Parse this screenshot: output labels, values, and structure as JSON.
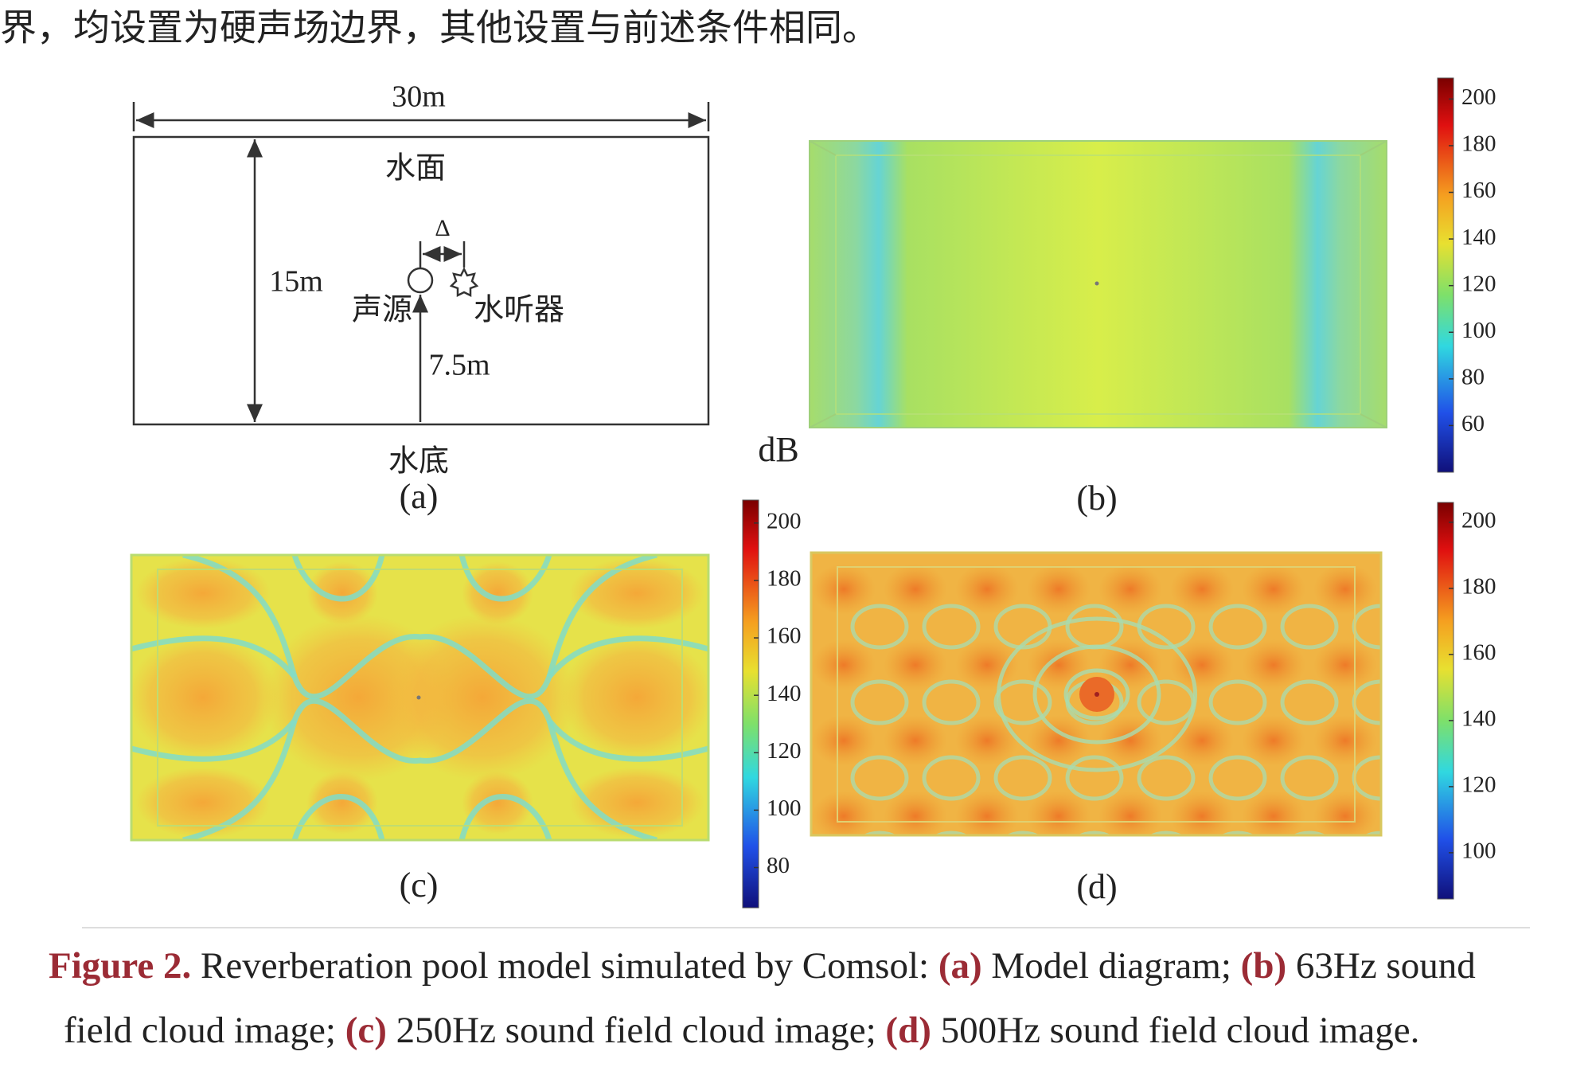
{
  "header": {
    "text": "界，均设置为硬声场边界，其他设置与前述条件相同。"
  },
  "panel_a": {
    "width_label": "30m",
    "top_label": "水面",
    "height_label": "15m",
    "delta_label": "Δ",
    "source_label": "声源",
    "hydrophone_label": "水听器",
    "depth_label": "7.5m",
    "bottom_label": "水底",
    "panel_label": "(a)"
  },
  "unit_label": "dB",
  "panels": [
    {
      "panel_label": "(b)"
    },
    {
      "panel_label": "(c)"
    },
    {
      "panel_label": "(d)"
    }
  ],
  "colorbars": [
    {
      "range": [
        40,
        209
      ],
      "ticks": [
        200,
        180,
        160,
        140,
        120,
        100,
        80,
        60
      ]
    },
    {
      "range": [
        66,
        208
      ],
      "ticks": [
        200,
        180,
        160,
        140,
        120,
        100,
        80
      ]
    },
    {
      "range": [
        86,
        206
      ],
      "ticks": [
        200,
        180,
        160,
        140,
        120,
        100
      ]
    }
  ],
  "caption": {
    "lines": [
      [
        "Figure 2.",
        "Reverberation pool model simulated by Comsol:",
        "(a)",
        "Model diagram;",
        "(b)",
        "63Hz sound"
      ],
      [
        "field cloud image;",
        "(c)",
        "250Hz sound field cloud image;",
        "(d)",
        "500Hz sound field cloud image."
      ]
    ]
  }
}
